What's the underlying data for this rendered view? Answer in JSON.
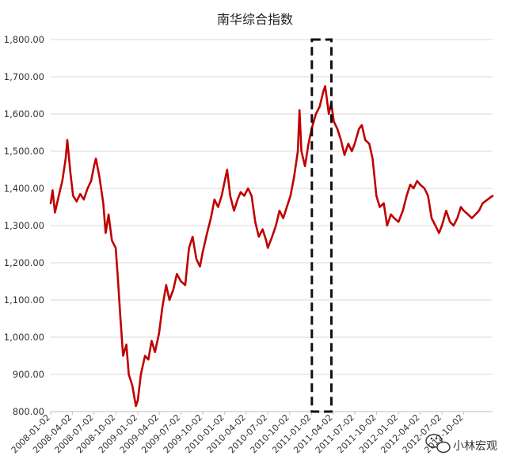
{
  "chart_data": {
    "type": "line",
    "title": "南华综合指数",
    "xlabel": "",
    "ylabel": "",
    "ylim": [
      800,
      1800
    ],
    "y_ticks": [
      "800.00",
      "900.00",
      "1,000.00",
      "1,100.00",
      "1,200.00",
      "1,300.00",
      "1,400.00",
      "1,500.00",
      "1,600.00",
      "1,700.00",
      "1,800.00"
    ],
    "y_tick_values": [
      800,
      900,
      1000,
      1100,
      1200,
      1300,
      1400,
      1500,
      1600,
      1700,
      1800
    ],
    "x_range": [
      "2008-01-02",
      "2013-01-31"
    ],
    "x_ticks": [
      "2008-01-02",
      "2008-04-02",
      "2008-07-02",
      "2008-10-02",
      "2009-01-02",
      "2009-04-02",
      "2009-07-02",
      "2009-10-02",
      "2010-01-02",
      "2010-04-02",
      "2010-07-02",
      "2010-10-02",
      "2011-01-02",
      "2011-04-02",
      "2011-07-02",
      "2011-10-02",
      "2012-01-02",
      "2012-04-02",
      "2012-07-02",
      "2012-10-02"
    ],
    "grid": true,
    "legend": "none",
    "series": [
      {
        "color": "#c00000",
        "points": [
          [
            "2008-01-02",
            1360
          ],
          [
            "2008-01-10",
            1395
          ],
          [
            "2008-01-20",
            1335
          ],
          [
            "2008-02-05",
            1380
          ],
          [
            "2008-02-20",
            1420
          ],
          [
            "2008-03-05",
            1480
          ],
          [
            "2008-03-12",
            1530
          ],
          [
            "2008-03-25",
            1440
          ],
          [
            "2008-04-05",
            1380
          ],
          [
            "2008-04-20",
            1365
          ],
          [
            "2008-05-05",
            1385
          ],
          [
            "2008-05-20",
            1370
          ],
          [
            "2008-06-05",
            1400
          ],
          [
            "2008-06-20",
            1420
          ],
          [
            "2008-07-02",
            1460
          ],
          [
            "2008-07-10",
            1480
          ],
          [
            "2008-07-25",
            1430
          ],
          [
            "2008-08-10",
            1360
          ],
          [
            "2008-08-20",
            1280
          ],
          [
            "2008-09-01",
            1330
          ],
          [
            "2008-09-15",
            1260
          ],
          [
            "2008-10-01",
            1240
          ],
          [
            "2008-10-10",
            1160
          ],
          [
            "2008-10-20",
            1060
          ],
          [
            "2008-11-01",
            950
          ],
          [
            "2008-11-15",
            980
          ],
          [
            "2008-11-25",
            900
          ],
          [
            "2008-12-10",
            870
          ],
          [
            "2008-12-25",
            815
          ],
          [
            "2009-01-02",
            830
          ],
          [
            "2009-01-15",
            900
          ],
          [
            "2009-02-01",
            950
          ],
          [
            "2009-02-15",
            940
          ],
          [
            "2009-03-01",
            990
          ],
          [
            "2009-03-15",
            960
          ],
          [
            "2009-04-01",
            1010
          ],
          [
            "2009-04-15",
            1080
          ],
          [
            "2009-05-01",
            1140
          ],
          [
            "2009-05-15",
            1100
          ],
          [
            "2009-06-01",
            1130
          ],
          [
            "2009-06-15",
            1170
          ],
          [
            "2009-07-02",
            1150
          ],
          [
            "2009-07-20",
            1140
          ],
          [
            "2009-08-05",
            1240
          ],
          [
            "2009-08-20",
            1270
          ],
          [
            "2009-09-05",
            1210
          ],
          [
            "2009-09-20",
            1190
          ],
          [
            "2009-10-02",
            1230
          ],
          [
            "2009-10-20",
            1280
          ],
          [
            "2009-11-05",
            1320
          ],
          [
            "2009-11-20",
            1370
          ],
          [
            "2009-12-05",
            1350
          ],
          [
            "2009-12-20",
            1380
          ],
          [
            "2010-01-02",
            1420
          ],
          [
            "2010-01-12",
            1450
          ],
          [
            "2010-01-25",
            1380
          ],
          [
            "2010-02-10",
            1340
          ],
          [
            "2010-02-25",
            1370
          ],
          [
            "2010-03-10",
            1390
          ],
          [
            "2010-03-25",
            1380
          ],
          [
            "2010-04-10",
            1400
          ],
          [
            "2010-04-25",
            1380
          ],
          [
            "2010-05-10",
            1310
          ],
          [
            "2010-05-25",
            1270
          ],
          [
            "2010-06-10",
            1290
          ],
          [
            "2010-06-25",
            1260
          ],
          [
            "2010-07-02",
            1240
          ],
          [
            "2010-07-20",
            1270
          ],
          [
            "2010-08-05",
            1300
          ],
          [
            "2010-08-20",
            1340
          ],
          [
            "2010-09-05",
            1320
          ],
          [
            "2010-09-20",
            1350
          ],
          [
            "2010-10-05",
            1380
          ],
          [
            "2010-10-20",
            1430
          ],
          [
            "2010-11-05",
            1500
          ],
          [
            "2010-11-12",
            1610
          ],
          [
            "2010-11-20",
            1500
          ],
          [
            "2010-12-05",
            1460
          ],
          [
            "2010-12-20",
            1520
          ],
          [
            "2011-01-02",
            1560
          ],
          [
            "2011-01-20",
            1600
          ],
          [
            "2011-02-05",
            1620
          ],
          [
            "2011-02-20",
            1660
          ],
          [
            "2011-02-28",
            1675
          ],
          [
            "2011-03-15",
            1600
          ],
          [
            "2011-03-25",
            1630
          ],
          [
            "2011-04-05",
            1580
          ],
          [
            "2011-04-20",
            1560
          ],
          [
            "2011-05-05",
            1530
          ],
          [
            "2011-05-20",
            1490
          ],
          [
            "2011-06-05",
            1520
          ],
          [
            "2011-06-20",
            1500
          ],
          [
            "2011-07-02",
            1520
          ],
          [
            "2011-07-20",
            1560
          ],
          [
            "2011-08-01",
            1570
          ],
          [
            "2011-08-15",
            1530
          ],
          [
            "2011-09-01",
            1520
          ],
          [
            "2011-09-15",
            1480
          ],
          [
            "2011-10-01",
            1380
          ],
          [
            "2011-10-15",
            1350
          ],
          [
            "2011-11-01",
            1360
          ],
          [
            "2011-11-15",
            1300
          ],
          [
            "2011-12-01",
            1330
          ],
          [
            "2011-12-15",
            1320
          ],
          [
            "2012-01-02",
            1310
          ],
          [
            "2012-01-20",
            1340
          ],
          [
            "2012-02-05",
            1380
          ],
          [
            "2012-02-20",
            1410
          ],
          [
            "2012-03-05",
            1400
          ],
          [
            "2012-03-20",
            1420
          ],
          [
            "2012-04-02",
            1410
          ],
          [
            "2012-04-20",
            1400
          ],
          [
            "2012-05-05",
            1380
          ],
          [
            "2012-05-20",
            1320
          ],
          [
            "2012-06-05",
            1300
          ],
          [
            "2012-06-20",
            1280
          ],
          [
            "2012-07-02",
            1300
          ],
          [
            "2012-07-20",
            1340
          ],
          [
            "2012-08-05",
            1310
          ],
          [
            "2012-08-20",
            1300
          ],
          [
            "2012-09-05",
            1320
          ],
          [
            "2012-09-20",
            1350
          ],
          [
            "2012-10-02",
            1340
          ],
          [
            "2012-10-20",
            1330
          ],
          [
            "2012-11-05",
            1320
          ],
          [
            "2012-11-20",
            1330
          ],
          [
            "2012-12-05",
            1340
          ],
          [
            "2012-12-20",
            1360
          ],
          [
            "2013-01-10",
            1370
          ],
          [
            "2013-01-31",
            1380
          ]
        ]
      }
    ],
    "annotation": {
      "shape": "dashed-rectangle",
      "from": "2011-01-03",
      "to": "2011-03-26",
      "y_range": [
        800,
        1800
      ]
    }
  },
  "watermark": {
    "text": "小林宏观",
    "icon": "wechat-icon"
  }
}
